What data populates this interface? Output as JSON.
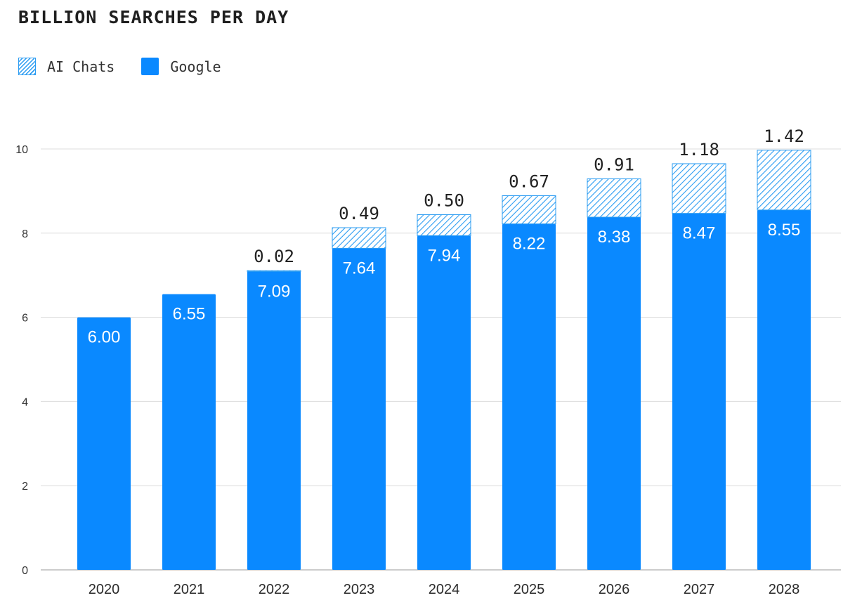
{
  "title": "BILLION SEARCHES PER DAY",
  "legend": [
    {
      "label": "AI Chats",
      "style": "hatched",
      "color": "#2b9cf2"
    },
    {
      "label": "Google",
      "style": "solid",
      "color": "#0a89ff"
    }
  ],
  "chart_data": {
    "type": "bar",
    "stacked": true,
    "title": "BILLION SEARCHES PER DAY",
    "xlabel": "",
    "ylabel": "",
    "categories": [
      "2020",
      "2021",
      "2022",
      "2023",
      "2024",
      "2025",
      "2026",
      "2027",
      "2028"
    ],
    "series": [
      {
        "name": "Google",
        "color": "#0a89ff",
        "values": [
          6.0,
          6.55,
          7.09,
          7.64,
          7.94,
          8.22,
          8.38,
          8.47,
          8.55
        ],
        "labels": [
          "6.00",
          "6.55",
          "7.09",
          "7.64",
          "7.94",
          "8.22",
          "8.38",
          "8.47",
          "8.55"
        ]
      },
      {
        "name": "AI Chats",
        "color": "#2b9cf2",
        "values": [
          null,
          null,
          0.02,
          0.49,
          0.5,
          0.67,
          0.91,
          1.18,
          1.42
        ],
        "labels": [
          "",
          "",
          "0.02",
          "0.49",
          "0.50",
          "0.67",
          "0.91",
          "1.18",
          "1.42"
        ]
      }
    ],
    "yticks": [
      "0",
      "2",
      "4",
      "6",
      "8",
      "10"
    ],
    "ylim": [
      0,
      10
    ],
    "grid": true,
    "legend_position": "top-left"
  }
}
